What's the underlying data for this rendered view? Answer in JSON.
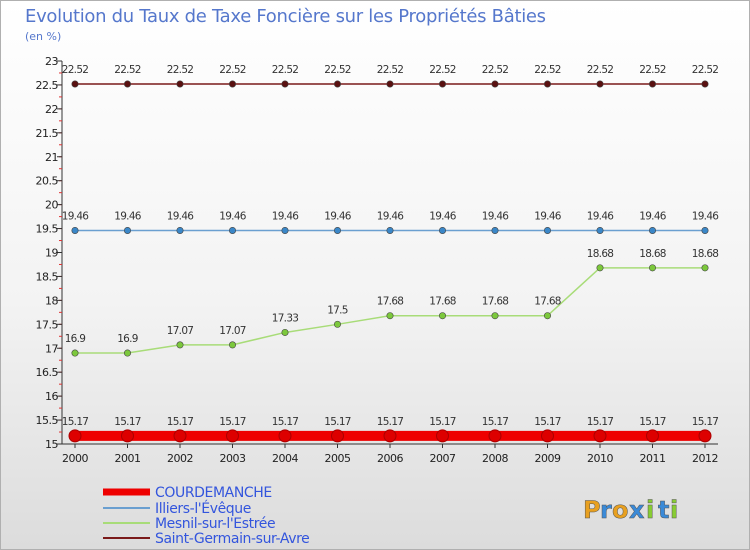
{
  "chart_data": {
    "type": "line",
    "title": "Evolution du Taux de Taxe Foncière sur les Propriétés Bâties",
    "unit_label": "(en %)",
    "xlabel": "",
    "ylabel": "",
    "x": [
      "2000",
      "2001",
      "2002",
      "2003",
      "2004",
      "2005",
      "2006",
      "2007",
      "2008",
      "2009",
      "2010",
      "2011",
      "2012"
    ],
    "ylim": [
      15,
      23
    ],
    "yticks": [
      15,
      15.5,
      16,
      16.5,
      17,
      17.5,
      18,
      18.5,
      19,
      19.5,
      20,
      20.5,
      21,
      21.5,
      22,
      22.5,
      23
    ],
    "grid": false,
    "legend_position": "bottom-left",
    "series": [
      {
        "name": "COURDEMANCHE",
        "color": "#ee0000",
        "marker_color": "#dd0000",
        "values": [
          15.17,
          15.17,
          15.17,
          15.17,
          15.17,
          15.17,
          15.17,
          15.17,
          15.17,
          15.17,
          15.17,
          15.17,
          15.17
        ],
        "labels": [
          "15.17",
          "15.17",
          "15.17",
          "15.17",
          "15.17",
          "15.17",
          "15.17",
          "15.17",
          "15.17",
          "15.17",
          "15.17",
          "15.17",
          "15.17"
        ]
      },
      {
        "name": "Illiers-l'Évêque",
        "color": "#6a9fd0",
        "marker_color": "#3a87c8",
        "values": [
          19.46,
          19.46,
          19.46,
          19.46,
          19.46,
          19.46,
          19.46,
          19.46,
          19.46,
          19.46,
          19.46,
          19.46,
          19.46
        ],
        "labels": [
          "19.46",
          "19.46",
          "19.46",
          "19.46",
          "19.46",
          "19.46",
          "19.46",
          "19.46",
          "19.46",
          "19.46",
          "19.46",
          "19.46",
          "19.46"
        ]
      },
      {
        "name": "Mesnil-sur-l'Estrée",
        "color": "#a8dc78",
        "marker_color": "#7cc83c",
        "values": [
          16.9,
          16.9,
          17.07,
          17.07,
          17.33,
          17.5,
          17.68,
          17.68,
          17.68,
          17.68,
          18.68,
          18.68,
          18.68
        ],
        "labels": [
          "16.9",
          "16.9",
          "17.07",
          "17.07",
          "17.33",
          "17.5",
          "17.68",
          "17.68",
          "17.68",
          "17.68",
          "18.68",
          "18.68",
          "18.68"
        ]
      },
      {
        "name": "Saint-Germain-sur-Avre",
        "color": "#7a1a1a",
        "marker_color": "#5a1010",
        "values": [
          22.52,
          22.52,
          22.52,
          22.52,
          22.52,
          22.52,
          22.52,
          22.52,
          22.52,
          22.52,
          22.52,
          22.52,
          22.52
        ],
        "labels": [
          "22.52",
          "22.52",
          "22.52",
          "22.52",
          "22.52",
          "22.52",
          "22.52",
          "22.52",
          "22.52",
          "22.52",
          "22.52",
          "22.52",
          "22.52"
        ]
      }
    ]
  },
  "brand": {
    "letters": [
      "P",
      "r",
      "o",
      "x",
      "i",
      "t",
      "i"
    ],
    "colors": [
      "#e8a020",
      "#3a8ad8",
      "#e8a020",
      "#3a8ad8",
      "#88cc33",
      "#3a8ad8",
      "#88cc33"
    ]
  }
}
